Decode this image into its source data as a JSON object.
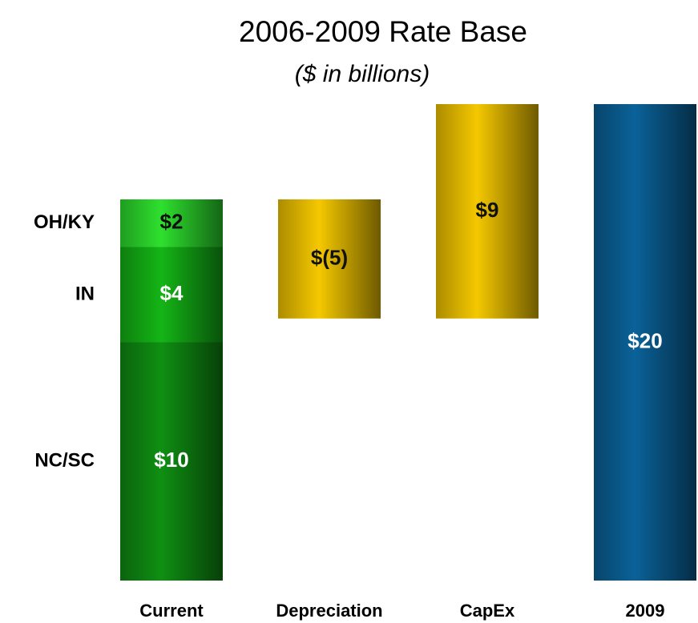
{
  "chart_data": {
    "type": "waterfall",
    "title": "2006-2009 Rate Base",
    "subtitle": "($ in billions)",
    "categories": [
      "Current",
      "Depreciation",
      "CapEx",
      "2009"
    ],
    "series": [
      {
        "name": "NC/SC",
        "color": "#0f8f12",
        "label_color": "#ffffff",
        "values": [
          10,
          null,
          null,
          null
        ],
        "value_labels": [
          "$10",
          null,
          null,
          null
        ]
      },
      {
        "name": "IN",
        "color": "#14b516",
        "label_color": "#ffffff",
        "values": [
          4,
          null,
          null,
          null
        ],
        "value_labels": [
          "$4",
          null,
          null,
          null
        ]
      },
      {
        "name": "OH/KY",
        "color": "#2ee02e",
        "label_color": "#111111",
        "values": [
          2,
          null,
          null,
          null
        ],
        "value_labels": [
          "$2",
          null,
          null,
          null
        ]
      }
    ],
    "steps": {
      "color": "#f5c800",
      "label_color": "#111111",
      "values": [
        null,
        -5,
        9,
        null
      ],
      "value_labels": [
        null,
        "$(5)",
        "$9",
        null
      ]
    },
    "total": {
      "color": "#0a6299",
      "label_color": "#ffffff",
      "values": [
        null,
        null,
        null,
        20
      ],
      "value_labels": [
        null,
        null,
        null,
        "$20"
      ]
    }
  }
}
